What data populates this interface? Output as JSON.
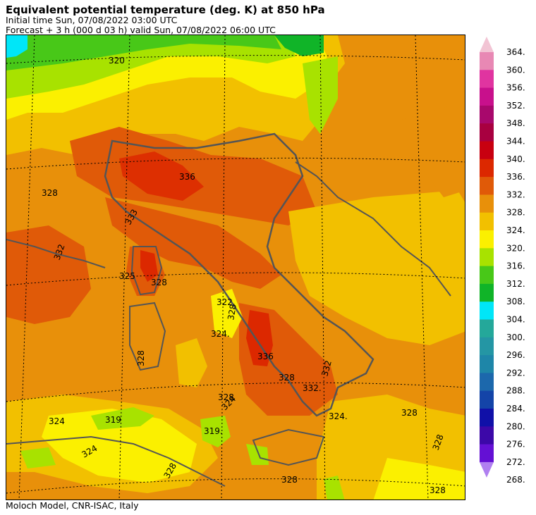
{
  "header": {
    "title": "Equivalent potential temperature (deg. K) at 850 hPa",
    "initial_time": "Initial time  Sun, 07/08/2022  03:00 UTC",
    "forecast": "Forecast  +   3 h  (000 d 03 h)  valid Sun, 07/08/2022 06:00 UTC"
  },
  "footer": {
    "credit": "Moloch Model, CNR-ISAC, Italy"
  },
  "colorbar": {
    "levels": [
      "364.",
      "360.",
      "356.",
      "352.",
      "348.",
      "344.",
      "340.",
      "336.",
      "332.",
      "328.",
      "324.",
      "320.",
      "316.",
      "312.",
      "308.",
      "304.",
      "300.",
      "296.",
      "292.",
      "288.",
      "284.",
      "280.",
      "276.",
      "272.",
      "268."
    ],
    "colors": [
      "#f2c4d4",
      "#e888b4",
      "#e034a0",
      "#c8108c",
      "#a8086c",
      "#a80040",
      "#c80010",
      "#dc2800",
      "#e05a08",
      "#e8900a",
      "#f2c000",
      "#fbf000",
      "#a8e200",
      "#48c818",
      "#10b428",
      "#00e6f8",
      "#24a89a",
      "#2496a4",
      "#1e86a8",
      "#1c68ac",
      "#1444a8",
      "#1010a8",
      "#3c08a8",
      "#6410d4",
      "#b080f0"
    ]
  },
  "map_labels": [
    {
      "text": "320",
      "color": "#000"
    },
    {
      "text": "328",
      "color": "#000"
    },
    {
      "text": "336",
      "color": "#000"
    },
    {
      "text": "333",
      "color": "#000"
    },
    {
      "text": "332",
      "color": "#000"
    },
    {
      "text": "325",
      "color": "#000"
    },
    {
      "text": "328",
      "color": "#000"
    },
    {
      "text": "322.",
      "color": "#000"
    },
    {
      "text": "328",
      "color": "#000"
    },
    {
      "text": "324.",
      "color": "#000"
    },
    {
      "text": "328",
      "color": "#000"
    },
    {
      "text": "328",
      "color": "#000"
    },
    {
      "text": "336",
      "color": "#000"
    },
    {
      "text": "332.",
      "color": "#000"
    },
    {
      "text": "332",
      "color": "#000"
    },
    {
      "text": "328",
      "color": "#000"
    },
    {
      "text": "324",
      "color": "#000"
    },
    {
      "text": "319",
      "color": "#000"
    },
    {
      "text": "319.",
      "color": "#000"
    },
    {
      "text": "324.",
      "color": "#000"
    },
    {
      "text": "328",
      "color": "#000"
    },
    {
      "text": "328",
      "color": "#000"
    },
    {
      "text": "324",
      "color": "#000"
    },
    {
      "text": "328",
      "color": "#000"
    },
    {
      "text": "328",
      "color": "#000"
    },
    {
      "text": "328",
      "color": "#000"
    },
    {
      "text": "324",
      "color": "#000"
    }
  ]
}
